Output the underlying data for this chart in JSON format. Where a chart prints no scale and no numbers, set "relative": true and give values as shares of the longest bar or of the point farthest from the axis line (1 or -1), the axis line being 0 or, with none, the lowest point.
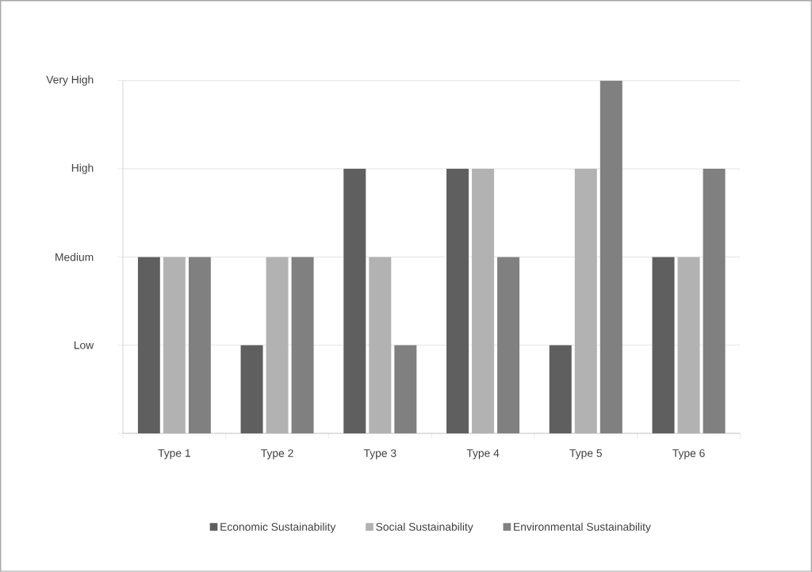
{
  "chart_data": {
    "type": "bar",
    "relative": true,
    "categories": [
      "Type 1",
      "Type 2",
      "Type 3",
      "Type 4",
      "Type 5",
      "Type 6"
    ],
    "series": [
      {
        "name": "Economic Sustainability",
        "color": "#5f5f5f",
        "values": [
          0.5,
          0.25,
          0.75,
          0.75,
          0.25,
          0.5
        ]
      },
      {
        "name": "Social Sustainability",
        "color": "#b2b2b2",
        "values": [
          0.5,
          0.5,
          0.5,
          0.75,
          0.75,
          0.5
        ]
      },
      {
        "name": "Environmental Sustainability",
        "color": "#808080",
        "values": [
          0.5,
          0.5,
          0.25,
          0.5,
          1,
          0.75
        ]
      }
    ],
    "annotations": [
      "Low",
      "Medium",
      "High",
      "Very High"
    ],
    "grid": "y",
    "legend": "bottom"
  }
}
